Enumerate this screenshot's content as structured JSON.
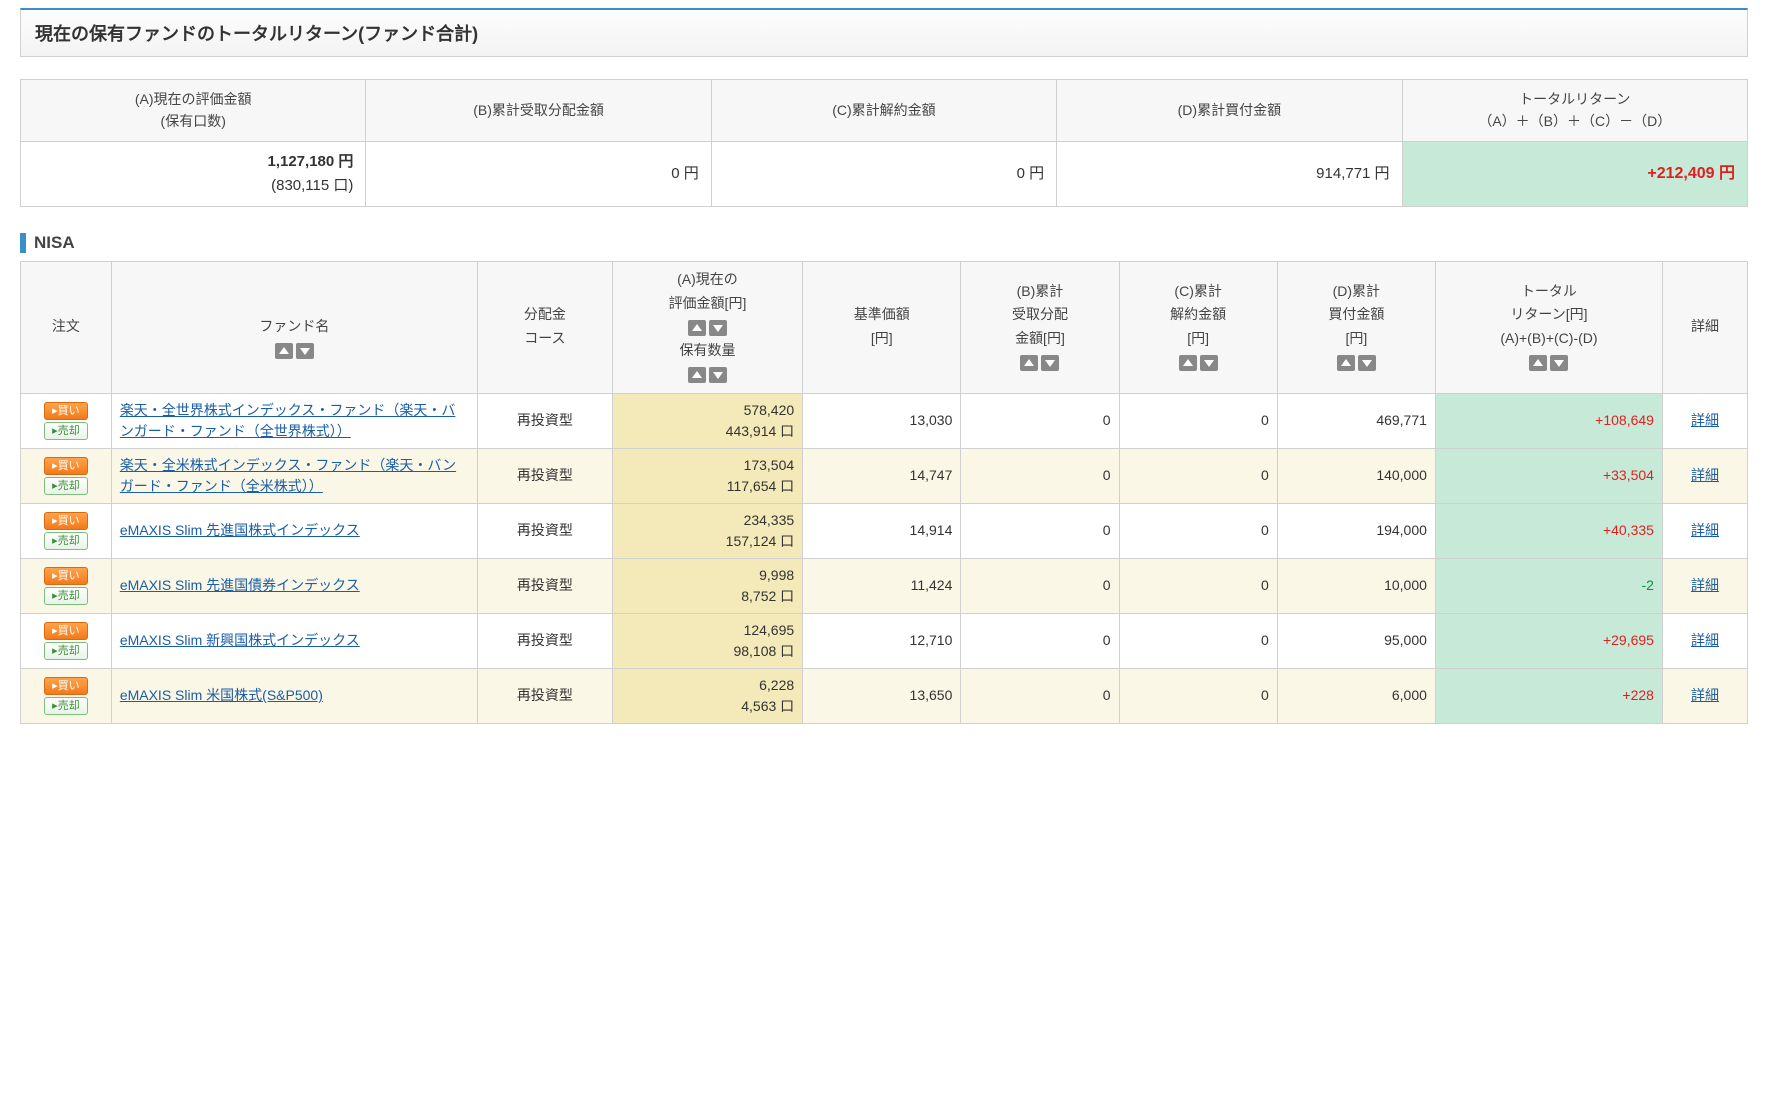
{
  "title": "現在の保有ファンドのトータルリターン(ファンド合計)",
  "summary": {
    "headers": {
      "a": "(A)現在の評価金額\n(保有口数)",
      "b": "(B)累計受取分配金額",
      "c": "(C)累計解約金額",
      "d": "(D)累計買付金額",
      "total_l1": "トータルリターン",
      "total_l2": "（A）＋（B）＋（C）－（D）"
    },
    "values": {
      "a_amount": "1,127,180 円",
      "a_units": "(830,115 口)",
      "b": "0 円",
      "c": "0 円",
      "d": "914,771 円",
      "total": "+212,409 円"
    }
  },
  "section_label": "NISA",
  "buy_label": "▸買い",
  "sell_label": "▸売却",
  "fund_headers": {
    "order": "注文",
    "fund_l1": "ファンド名",
    "dist": "分配金\nコース",
    "val_l1": "(A)現在の",
    "val_l2": "評価金額[円]",
    "val_l3": "保有数量",
    "nav": "基準価額\n[円]",
    "b": "(B)累計\n受取分配\n金額[円]",
    "c": "(C)累計\n解約金額\n[円]",
    "d": "(D)累計\n買付金額\n[円]",
    "ret_l1": "トータル",
    "ret_l2": "リターン[円]",
    "ret_l3": "(A)+(B)+(C)-(D)",
    "detail": "詳細"
  },
  "detail_link_label": "詳細",
  "funds": [
    {
      "name": "楽天・全世界株式インデックス・ファンド（楽天・バンガード・ファンド（全世界株式））",
      "dist": "再投資型",
      "val_amount": "578,420",
      "val_units": "443,914 口",
      "nav": "13,030",
      "b": "0",
      "c": "0",
      "d": "469,771",
      "return": "+108,649",
      "neg": false
    },
    {
      "name": "楽天・全米株式インデックス・ファンド（楽天・バンガード・ファンド（全米株式））",
      "dist": "再投資型",
      "val_amount": "173,504",
      "val_units": "117,654 口",
      "nav": "14,747",
      "b": "0",
      "c": "0",
      "d": "140,000",
      "return": "+33,504",
      "neg": false
    },
    {
      "name": "eMAXIS Slim 先進国株式インデックス",
      "dist": "再投資型",
      "val_amount": "234,335",
      "val_units": "157,124 口",
      "nav": "14,914",
      "b": "0",
      "c": "0",
      "d": "194,000",
      "return": "+40,335",
      "neg": false
    },
    {
      "name": "eMAXIS Slim 先進国債券インデックス",
      "dist": "再投資型",
      "val_amount": "9,998",
      "val_units": "8,752 口",
      "nav": "11,424",
      "b": "0",
      "c": "0",
      "d": "10,000",
      "return": "-2",
      "neg": true
    },
    {
      "name": "eMAXIS Slim 新興国株式インデックス",
      "dist": "再投資型",
      "val_amount": "124,695",
      "val_units": "98,108 口",
      "nav": "12,710",
      "b": "0",
      "c": "0",
      "d": "95,000",
      "return": "+29,695",
      "neg": false
    },
    {
      "name": "eMAXIS Slim 米国株式(S&P500)",
      "dist": "再投資型",
      "val_amount": "6,228",
      "val_units": "4,563 口",
      "nav": "13,650",
      "b": "0",
      "c": "0",
      "d": "6,000",
      "return": "+228",
      "neg": false
    }
  ]
}
